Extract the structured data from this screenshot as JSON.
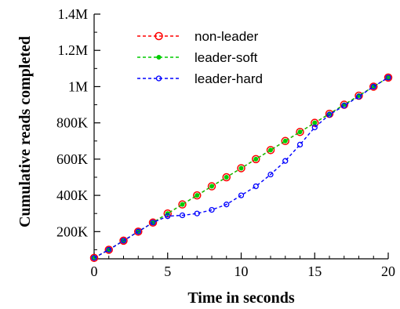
{
  "chart_data": {
    "type": "line",
    "title": "",
    "xlabel": "Time in seconds",
    "ylabel": "Cumulative reads completed",
    "xlim": [
      0,
      20
    ],
    "ylim": [
      50000,
      1400000
    ],
    "x_ticks": [
      0,
      5,
      10,
      15,
      20
    ],
    "x_tick_labels": [
      "0",
      "5",
      "10",
      "15",
      "20"
    ],
    "y_ticks": [
      200000,
      400000,
      600000,
      800000,
      1000000,
      1200000,
      1400000
    ],
    "y_tick_labels": [
      "200K",
      "400K",
      "600K",
      "800K",
      "1M",
      "1.2M",
      "1.4M"
    ],
    "grid": false,
    "legend_position": "top-left",
    "x": [
      0,
      1,
      2,
      3,
      4,
      5,
      6,
      7,
      8,
      9,
      10,
      11,
      12,
      13,
      14,
      15,
      16,
      17,
      18,
      19,
      20
    ],
    "series": [
      {
        "name": "non-leader",
        "color": "#ff0000",
        "marker": "open-circle",
        "values": [
          55000,
          100000,
          150000,
          200000,
          250000,
          300000,
          350000,
          400000,
          450000,
          500000,
          550000,
          600000,
          650000,
          700000,
          750000,
          800000,
          850000,
          900000,
          950000,
          1000000,
          1050000
        ]
      },
      {
        "name": "leader-soft",
        "color": "#00cc00",
        "marker": "filled-circle",
        "values": [
          55000,
          100000,
          150000,
          200000,
          250000,
          300000,
          350000,
          400000,
          450000,
          500000,
          550000,
          600000,
          650000,
          700000,
          750000,
          800000,
          850000,
          900000,
          950000,
          1000000,
          1050000
        ]
      },
      {
        "name": "leader-hard",
        "color": "#0000ff",
        "marker": "small-open-circle",
        "values": [
          55000,
          100000,
          150000,
          200000,
          250000,
          285000,
          290000,
          300000,
          320000,
          350000,
          400000,
          450000,
          515000,
          590000,
          680000,
          775000,
          845000,
          895000,
          945000,
          1000000,
          1050000
        ]
      }
    ]
  }
}
